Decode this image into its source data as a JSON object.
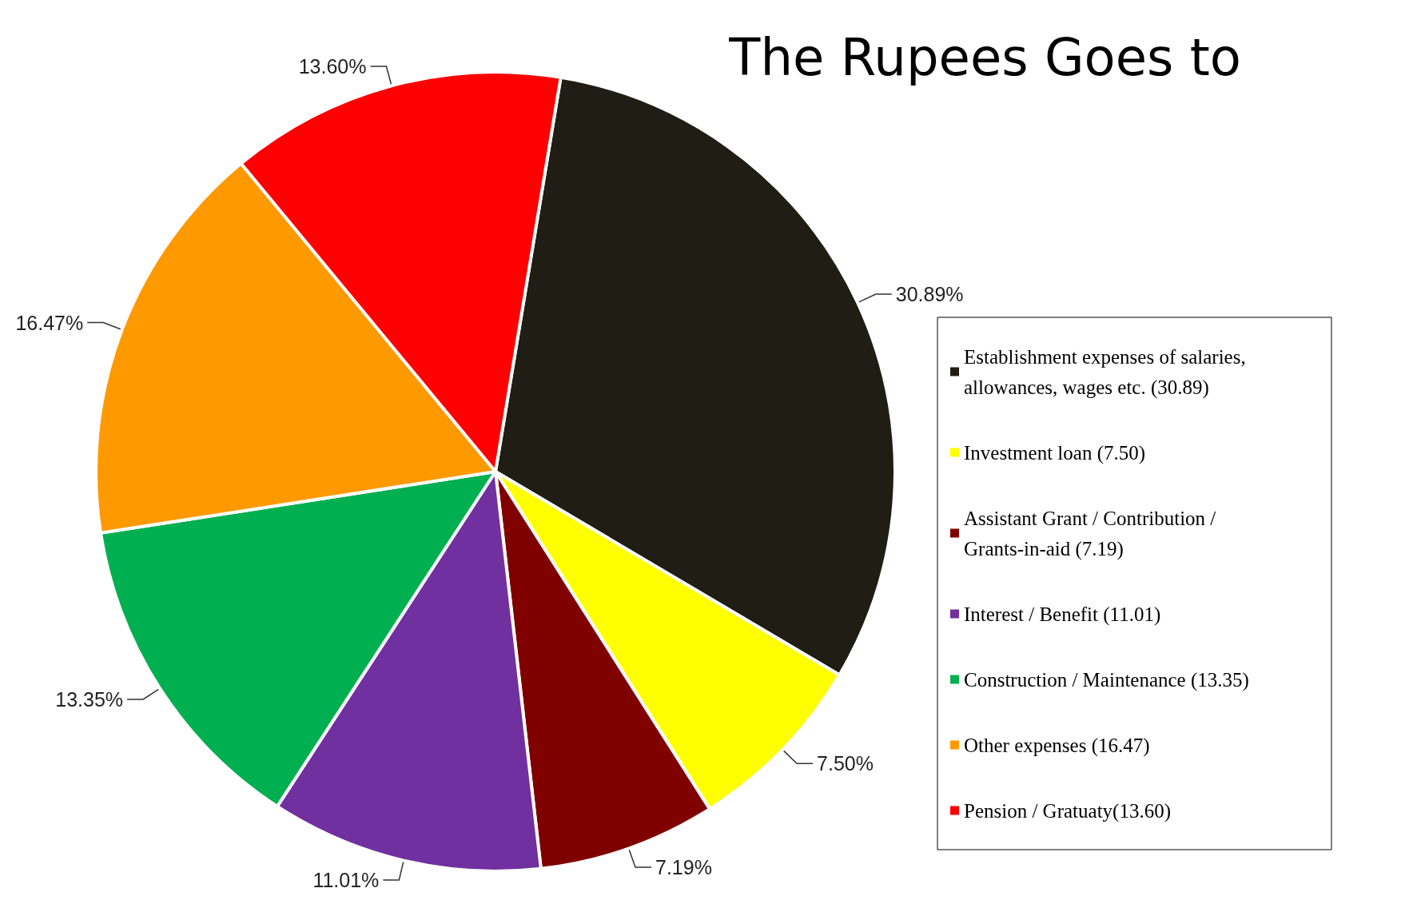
{
  "chart_data": {
    "type": "pie",
    "title": "The Rupees Goes to",
    "categories": [
      "Establishment expenses of salaries, allowances, wages etc. (30.89)",
      "Investment loan (7.50)",
      "Assistant Grant / Contribution / Grants-in-aid (7.19)",
      "Interest / Benefit (11.01)",
      "Construction / Maintenance (13.35)",
      "Other expenses (16.47)",
      "Pension / Gratuaty(13.60)"
    ],
    "values": [
      30.89,
      7.5,
      7.19,
      11.01,
      13.35,
      16.47,
      13.6
    ],
    "colors": [
      "#201d14",
      "#ffff00",
      "#800000",
      "#7030a0",
      "#00b050",
      "#ff9900",
      "#ff0000"
    ],
    "value_labels": [
      "30.89%",
      "7.50%",
      "7.19%",
      "11.01%",
      "13.35%",
      "16.47%",
      "13.60%"
    ],
    "legend": "right"
  }
}
